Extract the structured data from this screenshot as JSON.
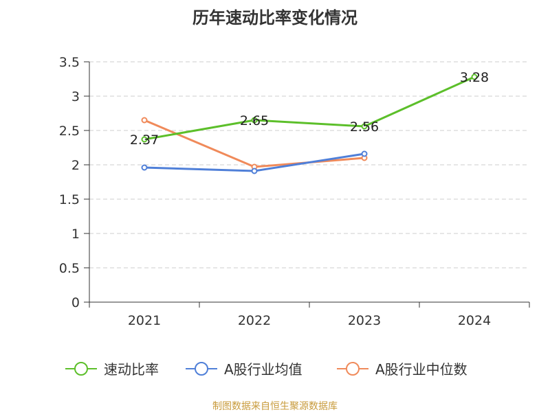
{
  "chart_data": {
    "type": "line",
    "title": "历年速动比率变化情况",
    "categories": [
      "2021",
      "2022",
      "2023",
      "2024"
    ],
    "ylim": [
      0,
      3.5
    ],
    "yticks": [
      "0",
      "0.5",
      "1",
      "1.5",
      "2",
      "2.5",
      "3",
      "3.5"
    ],
    "grid": true,
    "legend_position": "bottom",
    "series": [
      {
        "name": "速动比率",
        "color": "#5cbf2a",
        "values": [
          2.37,
          2.65,
          2.56,
          3.28
        ],
        "labels": [
          "2.37",
          "2.65",
          "2.56",
          "3.28"
        ]
      },
      {
        "name": "A股行业均值",
        "color": "#4f7fd8",
        "values": [
          1.96,
          1.91,
          2.16,
          null
        ]
      },
      {
        "name": "A股行业中位数",
        "color": "#f08a5a",
        "values": [
          2.65,
          1.97,
          2.1,
          null
        ]
      }
    ],
    "source": "制图数据来自恒生聚源数据库"
  }
}
